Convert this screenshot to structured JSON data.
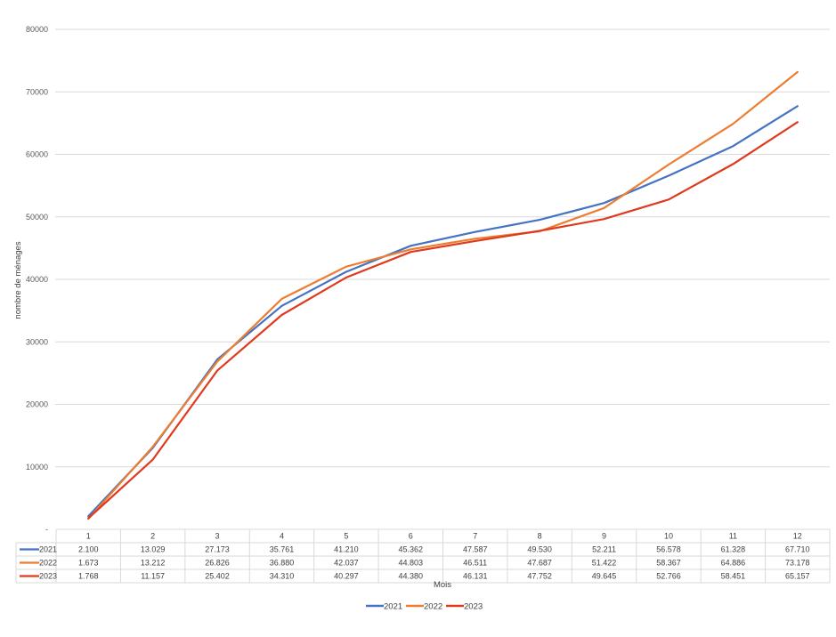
{
  "chart_data": {
    "type": "line",
    "title": "",
    "xlabel": "Mois",
    "ylabel": "nombre de ménages",
    "ylim": [
      0,
      80000
    ],
    "yticks": [
      "-",
      "10000",
      "20000",
      "30000",
      "40000",
      "50000",
      "60000",
      "70000",
      "80000"
    ],
    "yticks_values": [
      0,
      10000,
      20000,
      30000,
      40000,
      50000,
      60000,
      70000,
      80000
    ],
    "x": [
      "1",
      "2",
      "3",
      "4",
      "5",
      "6",
      "7",
      "8",
      "9",
      "10",
      "11",
      "12"
    ],
    "grid": true,
    "legend_position": "bottom",
    "series": [
      {
        "name": "2021",
        "color": "#4472C4",
        "values": [
          2100,
          13029,
          27173,
          35761,
          41210,
          45362,
          47587,
          49530,
          52211,
          56578,
          61328,
          67710
        ],
        "labels": [
          "2.100",
          "13.029",
          "27.173",
          "35.761",
          "41.210",
          "45.362",
          "47.587",
          "49.530",
          "52.211",
          "56.578",
          "61.328",
          "67.710"
        ]
      },
      {
        "name": "2022",
        "color": "#ED7D31",
        "values": [
          1673,
          13212,
          26826,
          36880,
          42037,
          44803,
          46511,
          47687,
          51422,
          58367,
          64886,
          73178
        ],
        "labels": [
          "1.673",
          "13.212",
          "26.826",
          "36.880",
          "42.037",
          "44.803",
          "46.511",
          "47.687",
          "51.422",
          "58.367",
          "64.886",
          "73.178"
        ]
      },
      {
        "name": "2023",
        "color": "#E03A1E",
        "values": [
          1768,
          11157,
          25402,
          34310,
          40297,
          44380,
          46131,
          47752,
          49645,
          52766,
          58451,
          65157
        ],
        "labels": [
          "1.768",
          "11.157",
          "25.402",
          "34.310",
          "40.297",
          "44.380",
          "46.131",
          "47.752",
          "49.645",
          "52.766",
          "58.451",
          "65.157"
        ]
      }
    ]
  }
}
